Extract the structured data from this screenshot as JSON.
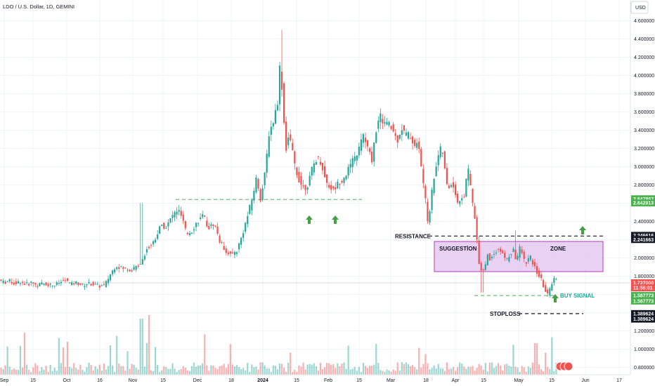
{
  "header": {
    "title": "LDO / U.S. Dollar, 1D, GEMINI",
    "currency": "USD"
  },
  "colors": {
    "up": "#26a69a",
    "down": "#ef5350",
    "zone_fill": "#e6c9f2",
    "zone_stroke": "#a21caf",
    "level_line": "#4caf50",
    "grid": "#f0f3fa",
    "text": "#131722"
  },
  "chart_data": {
    "type": "candlestick",
    "ylim": [
      0.75,
      4.75
    ],
    "y_ticks": [
      "0.800000",
      "1.000000",
      "1.200000",
      "1.400000",
      "1.600000",
      "1.800000",
      "2.000000",
      "2.200000",
      "2.400000",
      "2.600000",
      "2.800000",
      "3.000000",
      "3.200000",
      "3.400000",
      "3.600000",
      "3.800000",
      "4.000000",
      "4.200000",
      "4.400000",
      "4.600000"
    ],
    "x_ticks": [
      "Sep",
      "15",
      "Oct",
      "16",
      "Nov",
      "15",
      "Dec",
      "18",
      "2024",
      "15",
      "Feb",
      "15",
      "Mar",
      "18",
      "Apr",
      "15",
      "May",
      "15",
      "Jun",
      "17"
    ],
    "price_points": [
      [
        0,
        1.77
      ],
      [
        8,
        1.73
      ],
      [
        16,
        1.75
      ],
      [
        24,
        1.72
      ],
      [
        32,
        1.74
      ],
      [
        40,
        1.71
      ],
      [
        48,
        1.73
      ],
      [
        56,
        1.7
      ],
      [
        64,
        1.72
      ],
      [
        72,
        1.71
      ],
      [
        80,
        1.7
      ],
      [
        88,
        1.73
      ],
      [
        96,
        1.76
      ],
      [
        104,
        1.71
      ],
      [
        112,
        1.73
      ],
      [
        120,
        1.7
      ],
      [
        128,
        1.72
      ],
      [
        136,
        1.71
      ],
      [
        144,
        1.69
      ],
      [
        152,
        1.7
      ],
      [
        160,
        1.82
      ],
      [
        168,
        1.92
      ],
      [
        176,
        1.89
      ],
      [
        184,
        1.88
      ],
      [
        190,
        1.87
      ],
      [
        196,
        1.89
      ],
      [
        204,
        1.96
      ],
      [
        212,
        2.1
      ],
      [
        220,
        2.16
      ],
      [
        226,
        2.25
      ],
      [
        232,
        2.36
      ],
      [
        240,
        2.34
      ],
      [
        248,
        2.46
      ],
      [
        256,
        2.53
      ],
      [
        262,
        2.44
      ],
      [
        268,
        2.26
      ],
      [
        276,
        2.3
      ],
      [
        284,
        2.4
      ],
      [
        292,
        2.46
      ],
      [
        300,
        2.33
      ],
      [
        308,
        2.38
      ],
      [
        316,
        2.18
      ],
      [
        324,
        2.08
      ],
      [
        332,
        2.03
      ],
      [
        340,
        2.08
      ],
      [
        348,
        2.26
      ],
      [
        356,
        2.48
      ],
      [
        362,
        2.66
      ],
      [
        368,
        2.88
      ],
      [
        374,
        2.64
      ],
      [
        380,
        2.92
      ],
      [
        386,
        3.38
      ],
      [
        392,
        3.5
      ],
      [
        398,
        3.72
      ],
      [
        402,
        4.2
      ],
      [
        406,
        3.6
      ],
      [
        410,
        3.2
      ],
      [
        414,
        3.35
      ],
      [
        418,
        3.2
      ],
      [
        424,
        2.96
      ],
      [
        430,
        2.83
      ],
      [
        436,
        2.76
      ],
      [
        442,
        2.82
      ],
      [
        448,
        3.0
      ],
      [
        454,
        3.1
      ],
      [
        460,
        3.05
      ],
      [
        466,
        2.85
      ],
      [
        472,
        2.78
      ],
      [
        478,
        2.74
      ],
      [
        484,
        2.82
      ],
      [
        490,
        2.86
      ],
      [
        496,
        2.93
      ],
      [
        502,
        3.02
      ],
      [
        508,
        3.1
      ],
      [
        514,
        3.2
      ],
      [
        520,
        3.35
      ],
      [
        526,
        3.2
      ],
      [
        532,
        3.07
      ],
      [
        538,
        3.4
      ],
      [
        544,
        3.55
      ],
      [
        550,
        3.48
      ],
      [
        556,
        3.46
      ],
      [
        562,
        3.4
      ],
      [
        568,
        3.28
      ],
      [
        574,
        3.43
      ],
      [
        580,
        3.35
      ],
      [
        586,
        3.35
      ],
      [
        592,
        3.24
      ],
      [
        598,
        3.25
      ],
      [
        604,
        2.92
      ],
      [
        608,
        2.65
      ],
      [
        612,
        2.38
      ],
      [
        616,
        2.63
      ],
      [
        620,
        2.86
      ],
      [
        626,
        3.12
      ],
      [
        632,
        3.22
      ],
      [
        636,
        2.95
      ],
      [
        640,
        2.74
      ],
      [
        646,
        2.84
      ],
      [
        652,
        2.68
      ],
      [
        656,
        2.56
      ],
      [
        660,
        2.68
      ],
      [
        664,
        2.66
      ],
      [
        668,
        3.02
      ],
      [
        672,
        2.82
      ],
      [
        676,
        2.56
      ],
      [
        680,
        2.35
      ],
      [
        684,
        1.98
      ],
      [
        688,
        1.87
      ],
      [
        692,
        1.86
      ],
      [
        696,
        2.04
      ],
      [
        700,
        1.98
      ],
      [
        706,
        2.06
      ],
      [
        712,
        2.1
      ],
      [
        718,
        2.04
      ],
      [
        724,
        1.98
      ],
      [
        730,
        2.05
      ],
      [
        734,
        2.08
      ],
      [
        738,
        1.96
      ],
      [
        742,
        2.12
      ],
      [
        746,
        2.05
      ],
      [
        750,
        1.94
      ],
      [
        754,
        1.98
      ],
      [
        758,
        2.0
      ],
      [
        762,
        1.92
      ],
      [
        766,
        1.86
      ],
      [
        770,
        1.8
      ],
      [
        774,
        1.75
      ],
      [
        778,
        1.65
      ],
      [
        782,
        1.6
      ],
      [
        786,
        1.66
      ],
      [
        790,
        1.78
      ],
      [
        794,
        1.76
      ]
    ],
    "last_price": "1.727000",
    "annotations": {
      "resistance_label": "RESISTANCE",
      "resistance_level": 2.24,
      "zone_label_left": "SUGGESTİON",
      "zone_label_right": "ZONE",
      "zone_low": 1.85,
      "zone_high": 2.18,
      "buy_signal_label": "BUY SIGNAL",
      "buy_level": 1.587773,
      "stoploss_label": "STOPLOSS",
      "stoploss_level": 1.389624,
      "support_level": 2.64
    },
    "price_badges": [
      {
        "label": "2.647867",
        "value": 2.647867,
        "color": "#4caf50"
      },
      {
        "label": "2.642913",
        "value": 2.602913,
        "color": "#4caf50"
      },
      {
        "label": "2.246616",
        "value": 2.246616,
        "color": "#131722"
      },
      {
        "label": "2.241663",
        "value": 2.201663,
        "color": "#131722"
      },
      {
        "label": "1.727000",
        "value": 1.727,
        "color": "#ef5350"
      },
      {
        "label": "11:56:01",
        "value": 1.672,
        "color": "#ef5350"
      },
      {
        "label": "1.587773",
        "value": 1.587773,
        "color": "#4caf50"
      },
      {
        "label": "1.587773",
        "value": 1.527773,
        "color": "#4caf50"
      },
      {
        "label": "1.389624",
        "value": 1.389624,
        "color": "#131722"
      },
      {
        "label": "1.389624",
        "value": 1.329624,
        "color": "#131722"
      }
    ]
  }
}
